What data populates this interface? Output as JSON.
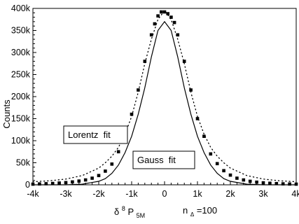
{
  "chart_data": {
    "type": "scatter",
    "title": "",
    "xlabel": "δ⁸P₅M",
    "xlabel_parts": {
      "base": "δ",
      "sup": "8",
      "main": "P",
      "sub": "5M"
    },
    "ylabel": "Counts",
    "xlim": [
      -4000,
      4000
    ],
    "ylim": [
      0,
      400000
    ],
    "x_ticks": [
      -4000,
      -3000,
      -2000,
      -1000,
      0,
      1000,
      2000,
      3000,
      4000
    ],
    "x_tick_labels": [
      "-4k",
      "-3k",
      "-2k",
      "-1k",
      "0",
      "1k",
      "2k",
      "3k",
      "4k"
    ],
    "y_ticks": [
      0,
      50000,
      100000,
      150000,
      200000,
      250000,
      300000,
      350000,
      400000
    ],
    "y_tick_labels": [
      "0",
      "50k",
      "100k",
      "150k",
      "200k",
      "250k",
      "300k",
      "350k",
      "400k"
    ],
    "grid": false,
    "annotation": {
      "base": "n",
      "sub": "Δ",
      "rest": "=100"
    },
    "boxes": [
      {
        "id": "lorentz",
        "label": "Lorentz  fit"
      },
      {
        "id": "gauss",
        "label": "Gauss  fit"
      }
    ],
    "series": [
      {
        "style": "squares",
        "x": [
          -4000,
          -3800,
          -3600,
          -3400,
          -3200,
          -3000,
          -2800,
          -2600,
          -2400,
          -2200,
          -2000,
          -1800,
          -1600,
          -1400,
          -1200,
          -1000,
          -800,
          -600,
          -400,
          -300,
          -200,
          -100,
          0,
          100,
          200,
          300,
          400,
          600,
          800,
          1000,
          1200,
          1400,
          1600,
          1800,
          2000,
          2200,
          2400,
          2600,
          2800,
          3000,
          3200,
          3400,
          3600,
          3800,
          4000
        ],
        "y": [
          1500,
          2000,
          2500,
          3000,
          4000,
          5000,
          6500,
          8500,
          11000,
          15000,
          21000,
          31000,
          47000,
          75000,
          115000,
          160000,
          215000,
          280000,
          340000,
          365000,
          383000,
          392000,
          392000,
          388000,
          380000,
          368000,
          340000,
          280000,
          215000,
          150000,
          110000,
          70000,
          48000,
          32000,
          22000,
          15000,
          11000,
          8000,
          6000,
          4500,
          3500,
          2800,
          2200,
          1800,
          1500
        ]
      },
      {
        "style": "solid-line",
        "x": [
          -4000,
          -3500,
          -3000,
          -2500,
          -2000,
          -1800,
          -1600,
          -1400,
          -1200,
          -1000,
          -800,
          -600,
          -400,
          -200,
          0,
          200,
          400,
          600,
          800,
          1000,
          1200,
          1400,
          1600,
          1800,
          2000,
          2500,
          3000,
          3500,
          4000
        ],
        "y": [
          0,
          0,
          0,
          1500,
          8000,
          14000,
          26000,
          45000,
          73000,
          110000,
          160000,
          220000,
          290000,
          350000,
          370000,
          350000,
          290000,
          220000,
          160000,
          110000,
          73000,
          45000,
          26000,
          14000,
          8000,
          1500,
          0,
          0,
          0
        ]
      },
      {
        "style": "dotted-line",
        "x": [
          -4000,
          -3500,
          -3000,
          -2500,
          -2000,
          -1800,
          -1600,
          -1400,
          -1200,
          -1000,
          -800,
          -600,
          -400,
          -200,
          0,
          200,
          400,
          600,
          800,
          1000,
          1200,
          1400,
          1600,
          1800,
          2000,
          2500,
          3000,
          3500,
          4000
        ],
        "y": [
          7000,
          9000,
          13000,
          21000,
          38000,
          50000,
          65000,
          85000,
          115000,
          155000,
          210000,
          275000,
          330000,
          375000,
          395000,
          375000,
          330000,
          275000,
          210000,
          155000,
          115000,
          85000,
          65000,
          50000,
          38000,
          21000,
          13000,
          9000,
          7000
        ]
      }
    ]
  }
}
